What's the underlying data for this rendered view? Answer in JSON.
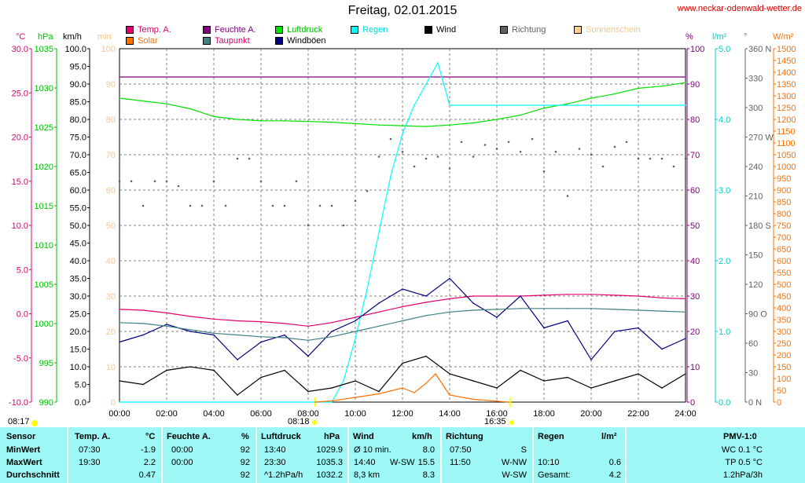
{
  "title": "Freitag, 02.01.2015",
  "source": "www.neckar-odenwald-wetter.de",
  "legend": [
    {
      "label": "Temp. A.",
      "color": "#e0006e",
      "text_color": "#e0006e"
    },
    {
      "label": "Feuchte A.",
      "color": "#800080",
      "text_color": "#800080"
    },
    {
      "label": "Luftdruck",
      "color": "#00e000",
      "text_color": "#00c000"
    },
    {
      "label": "Regen",
      "color": "#00ffff",
      "text_color": "#00dddd"
    },
    {
      "label": "Wind",
      "color": "#000000",
      "text_color": "#000000"
    },
    {
      "label": "Richtung",
      "color": "#606060",
      "text_color": "#606060"
    },
    {
      "label": "Sonnenschein",
      "color": "#ffd090",
      "text_color": "#f5c68a"
    },
    {
      "label": "Solar",
      "color": "#ff7000",
      "text_color": "#ff7000"
    },
    {
      "label": "Taupunkt",
      "color": "#408080",
      "text_color": "#e0006e"
    },
    {
      "label": "Windböen",
      "color": "#000080",
      "text_color": "#000000"
    }
  ],
  "axis_units": {
    "temp": "°C",
    "pressure": "hPa",
    "wind": "km/h",
    "minutes": "min",
    "humidity": "%",
    "rain": "l/m²",
    "direction": "°",
    "solar": "W/m²"
  },
  "sunrise": "08:17",
  "sunrise_mark": "08:18",
  "sunset_mark": "16:35",
  "chart_data": {
    "type": "line",
    "x_unit": "time of day",
    "xlim": [
      "00:00",
      "24:00"
    ],
    "x_ticks": [
      "00:00",
      "02:00",
      "04:00",
      "06:00",
      "08:00",
      "10:00",
      "12:00",
      "14:00",
      "16:00",
      "18:00",
      "20:00",
      "22:00",
      "24:00"
    ],
    "axes": {
      "temp": {
        "range": [
          -10,
          30
        ],
        "ticks": [
          "-10.0",
          "-5.0",
          "0.0",
          "5.0",
          "10.0",
          "15.0",
          "20.0",
          "25.0",
          "30.0"
        ]
      },
      "pressure": {
        "range": [
          990,
          1040
        ],
        "ticks": [
          "990",
          "995",
          "1000",
          "1005",
          "1010",
          "1015",
          "1020",
          "1025",
          "1030",
          "1035"
        ]
      },
      "wind": {
        "range": [
          0,
          100
        ],
        "ticks": [
          "0.0",
          "5.0",
          "10.0",
          "15.0",
          "20.0",
          "25.0",
          "30.0",
          "35.0",
          "40.0",
          "45.0",
          "50.0",
          "55.0",
          "60.0",
          "65.0",
          "70.0",
          "75.0",
          "80.0",
          "85.0",
          "90.0",
          "95.0",
          "100.0"
        ]
      },
      "minutes": {
        "range": [
          0,
          100
        ],
        "ticks": [
          "0",
          "10",
          "20",
          "30",
          "40",
          "50",
          "60",
          "70",
          "80",
          "90",
          "100"
        ]
      },
      "humidity": {
        "range": [
          0,
          100
        ],
        "ticks": [
          "0",
          "10",
          "20",
          "30",
          "40",
          "50",
          "60",
          "70",
          "80",
          "90",
          "100"
        ]
      },
      "rain": {
        "range": [
          0,
          5
        ],
        "ticks": [
          "0.0",
          "1.0",
          "2.0",
          "3.0",
          "4.0",
          "5.0"
        ]
      },
      "direction": {
        "range": [
          0,
          360
        ],
        "ticks": [
          "0 N",
          "30",
          "60",
          "90 O",
          "120",
          "150",
          "180 S",
          "210",
          "240",
          "270 W",
          "300",
          "330",
          "360 N"
        ]
      },
      "solar": {
        "range": [
          0,
          1500
        ],
        "ticks": [
          "0",
          "50",
          "100",
          "150",
          "200",
          "250",
          "300",
          "350",
          "400",
          "450",
          "500",
          "550",
          "600",
          "650",
          "700",
          "750",
          "800",
          "850",
          "900",
          "950",
          "1000",
          "1050",
          "1100",
          "1150",
          "1200",
          "1250",
          "1300",
          "1350",
          "1400",
          "1450",
          "1500"
        ]
      }
    },
    "series": [
      {
        "name": "Temp. A.",
        "axis": "temp",
        "x": [
          0,
          1,
          2,
          3,
          4,
          5,
          6,
          7,
          8,
          9,
          10,
          11,
          12,
          13,
          14,
          15,
          16,
          17,
          18,
          19,
          20,
          21,
          22,
          23,
          24
        ],
        "values": [
          0.5,
          0.4,
          0.1,
          -0.3,
          -0.6,
          -0.8,
          -0.9,
          -1.1,
          -1.4,
          -1.0,
          -0.4,
          0.2,
          0.8,
          1.3,
          1.7,
          2.0,
          2.0,
          2.0,
          2.1,
          2.2,
          2.2,
          2.1,
          2.0,
          1.8,
          1.7
        ]
      },
      {
        "name": "Feuchte A.",
        "axis": "humidity",
        "x": [
          0,
          24
        ],
        "values": [
          92,
          92
        ]
      },
      {
        "name": "Luftdruck",
        "axis": "pressure",
        "x": [
          0,
          1,
          2,
          3,
          4,
          5,
          6,
          7,
          8,
          9,
          10,
          11,
          12,
          13,
          14,
          15,
          16,
          17,
          18,
          19,
          20,
          21,
          22,
          23,
          24
        ],
        "values": [
          1033.0,
          1032.6,
          1032.2,
          1031.5,
          1030.4,
          1030.0,
          1029.8,
          1029.8,
          1029.7,
          1029.6,
          1029.4,
          1029.2,
          1029.1,
          1029.0,
          1029.2,
          1029.5,
          1030.0,
          1030.6,
          1031.6,
          1032.2,
          1033.0,
          1033.6,
          1034.4,
          1034.7,
          1035.2
        ]
      },
      {
        "name": "Regen",
        "axis": "rain",
        "x": [
          0,
          9.0,
          9.5,
          10.0,
          10.5,
          11.0,
          11.5,
          12.0,
          12.5,
          13.0,
          13.5,
          14.0,
          16,
          18,
          20,
          22,
          24
        ],
        "values": [
          0,
          0,
          0.3,
          0.9,
          1.6,
          2.4,
          3.2,
          3.8,
          4.2,
          4.5,
          4.8,
          4.2,
          4.2,
          4.2,
          4.2,
          4.2,
          4.2
        ]
      },
      {
        "name": "Wind",
        "axis": "wind",
        "x": [
          0,
          1,
          2,
          3,
          4,
          5,
          6,
          7,
          8,
          9,
          10,
          11,
          12,
          13,
          14,
          15,
          16,
          17,
          18,
          19,
          20,
          21,
          22,
          23,
          24
        ],
        "values": [
          6,
          5,
          9,
          10,
          9,
          2,
          7,
          9,
          3,
          4,
          6,
          3,
          11,
          13,
          8,
          6,
          4,
          9,
          6,
          7,
          4,
          6,
          8,
          4,
          8
        ]
      },
      {
        "name": "Windböen",
        "axis": "wind",
        "x": [
          0,
          1,
          2,
          3,
          4,
          5,
          6,
          7,
          8,
          9,
          10,
          11,
          12,
          13,
          14,
          15,
          16,
          17,
          18,
          19,
          20,
          21,
          22,
          23,
          24
        ],
        "values": [
          17,
          19,
          22,
          20,
          19,
          12,
          17,
          19,
          13,
          20,
          23,
          28,
          32,
          30,
          35,
          28,
          24,
          30,
          21,
          23,
          12,
          20,
          21,
          15,
          18
        ]
      },
      {
        "name": "Taupunkt",
        "axis": "temp",
        "x": [
          0,
          1,
          2,
          3,
          4,
          5,
          6,
          7,
          8,
          9,
          10,
          11,
          12,
          13,
          14,
          15,
          16,
          17,
          18,
          19,
          20,
          21,
          22,
          23,
          24
        ],
        "values": [
          -1.0,
          -1.1,
          -1.4,
          -1.8,
          -2.2,
          -2.4,
          -2.6,
          -2.7,
          -3.0,
          -2.6,
          -2.0,
          -1.4,
          -0.8,
          -0.2,
          0.2,
          0.4,
          0.5,
          0.6,
          0.6,
          0.6,
          0.6,
          0.5,
          0.4,
          0.3,
          0.2
        ]
      },
      {
        "name": "Solar",
        "axis": "solar",
        "x": [
          8.3,
          9,
          10,
          11,
          12,
          12.5,
          13,
          13.4,
          13.8,
          14,
          15,
          16,
          16.5
        ],
        "values": [
          0,
          5,
          20,
          35,
          60,
          40,
          80,
          120,
          60,
          30,
          12,
          4,
          0
        ]
      },
      {
        "name": "Richtung",
        "axis": "direction",
        "style": "dots",
        "x": [
          0,
          0.5,
          1,
          1.5,
          2,
          2.5,
          3,
          3.5,
          4,
          4.5,
          5,
          5.5,
          6,
          6.5,
          7,
          7.5,
          8,
          8.5,
          9,
          9.5,
          10,
          10.5,
          11,
          11.5,
          12,
          12.5,
          13,
          13.5,
          14,
          14.5,
          15,
          15.5,
          16,
          16.5,
          17,
          17.5,
          18,
          18.5,
          19,
          19.5,
          20,
          20.5,
          21,
          21.5,
          22,
          22.5,
          23,
          23.5,
          24
        ],
        "values": [
          225,
          225,
          200,
          225,
          225,
          220,
          200,
          200,
          225,
          200,
          248,
          248,
          225,
          200,
          200,
          225,
          180,
          200,
          200,
          180,
          205,
          215,
          250,
          268,
          255,
          240,
          248,
          250,
          238,
          265,
          250,
          262,
          258,
          265,
          255,
          268,
          235,
          255,
          210,
          258,
          252,
          240,
          260,
          265,
          248,
          248,
          248,
          240,
          248
        ]
      }
    ]
  },
  "summary": {
    "headers": {
      "sensor": "Sensor",
      "temp": "Temp. A.",
      "temp_unit": "°C",
      "hum": "Feuchte A.",
      "hum_unit": "%",
      "press": "Luftdruck",
      "press_unit": "hPa",
      "wind": "Wind",
      "wind_unit": "km/h",
      "dir": "Richtung",
      "rain": "Regen",
      "rain_unit": "l/m²",
      "pmv": "PMV-1:0"
    },
    "rows": [
      {
        "label": "MinWert",
        "temp_time": "07:30",
        "temp": "-1.9",
        "hum_time": "00:00",
        "hum": "92",
        "press_time": "13:40",
        "press": "1029.9",
        "wind_time": "Ø 10 min.",
        "wind_dir": "",
        "wind": "8.0",
        "dir_time": "07:50",
        "dir": "S",
        "rain_time": "",
        "rain": "",
        "pmv": "WC 0.1 °C"
      },
      {
        "label": "MaxWert",
        "temp_time": "19:30",
        "temp": "2.2",
        "hum_time": "00:00",
        "hum": "92",
        "press_time": "23:30",
        "press": "1035.3",
        "wind_time": "14:40",
        "wind_dir": "W-SW",
        "wind": "15.5",
        "dir_time": "11:50",
        "dir": "W-NW",
        "rain_time": "10:10",
        "rain": "0.6",
        "pmv": "TP 0.5 °C"
      },
      {
        "label": "Durchschnitt",
        "temp_time": "",
        "temp": "0.47",
        "hum_time": "",
        "hum": "92",
        "press_time": "^1.2hPa/h",
        "press": "1032.2",
        "wind_time": "8,3 km",
        "wind_dir": "",
        "wind": "8.3",
        "dir_time": "",
        "dir": "W-SW",
        "rain_time": "Gesamt:",
        "rain": "4.2",
        "pmv": "1.2hPa/3h"
      }
    ]
  }
}
